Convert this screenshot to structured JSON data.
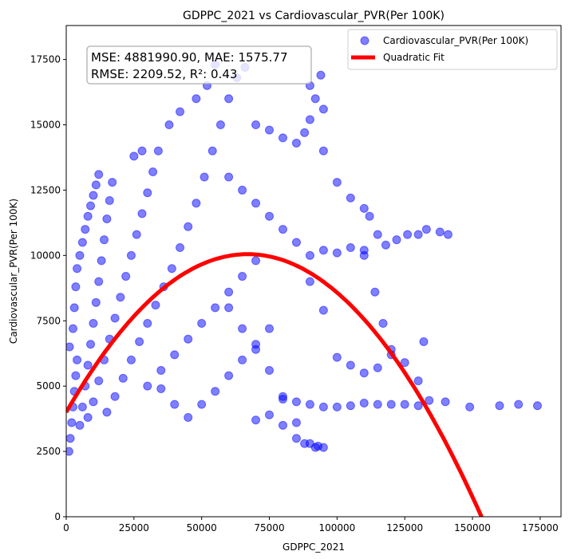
{
  "chart_data": {
    "type": "scatter",
    "title": "GDPPC_2021 vs Cardiovascular_PVR(Per 100K)",
    "xlabel": "GDPPC_2021",
    "ylabel": "Cardiovascular_PVR(Per 100K)",
    "xlim": [
      0,
      182700
    ],
    "ylim": [
      0,
      18800
    ],
    "xticks": [
      0,
      25000,
      50000,
      75000,
      100000,
      125000,
      150000,
      175000
    ],
    "yticks": [
      0,
      2500,
      5000,
      7500,
      10000,
      12500,
      15000,
      17500
    ],
    "xtick_labels": [
      "0",
      "25000",
      "50000",
      "75000",
      "100000",
      "125000",
      "150000",
      "175000"
    ],
    "ytick_labels": [
      "0",
      "2500",
      "5000",
      "7500",
      "10000",
      "12500",
      "15000",
      "17500"
    ],
    "legend": {
      "placement": "top-right",
      "entries": [
        "Cardiovascular_PVR(Per 100K)",
        "Quadratic Fit"
      ]
    },
    "stats": {
      "line1": "MSE: 4881990.90, MAE: 1575.77",
      "line2": "RMSE: 2209.52, R²: 0.43"
    },
    "colors": {
      "scatter": "#0000ff",
      "fit": "#ff0000"
    },
    "fit": {
      "name": "Quadratic Fit",
      "a": -1.348e-06,
      "b": 0.1806,
      "c": 4000,
      "x_range": [
        0,
        154000
      ]
    },
    "series": [
      {
        "name": "Cardiovascular_PVR(Per 100K)",
        "points": [
          [
            1000,
            2500
          ],
          [
            1500,
            3000
          ],
          [
            2000,
            3600
          ],
          [
            2500,
            4200
          ],
          [
            3000,
            4800
          ],
          [
            3500,
            5400
          ],
          [
            4000,
            6000
          ],
          [
            1200,
            6500
          ],
          [
            2500,
            7200
          ],
          [
            3000,
            8000
          ],
          [
            3500,
            8800
          ],
          [
            4000,
            9500
          ],
          [
            5000,
            10000
          ],
          [
            6000,
            10500
          ],
          [
            7000,
            11000
          ],
          [
            8000,
            11500
          ],
          [
            9000,
            11900
          ],
          [
            10000,
            12300
          ],
          [
            11000,
            12700
          ],
          [
            12000,
            13100
          ],
          [
            5000,
            3500
          ],
          [
            6000,
            4200
          ],
          [
            7000,
            5000
          ],
          [
            8000,
            5800
          ],
          [
            9000,
            6600
          ],
          [
            10000,
            7400
          ],
          [
            11000,
            8200
          ],
          [
            12000,
            9000
          ],
          [
            13000,
            9800
          ],
          [
            14000,
            10600
          ],
          [
            15000,
            11400
          ],
          [
            16000,
            12100
          ],
          [
            17000,
            12800
          ],
          [
            8000,
            3800
          ],
          [
            10000,
            4400
          ],
          [
            12000,
            5200
          ],
          [
            14000,
            6000
          ],
          [
            16000,
            6800
          ],
          [
            18000,
            7600
          ],
          [
            20000,
            8400
          ],
          [
            22000,
            9200
          ],
          [
            24000,
            10000
          ],
          [
            26000,
            10800
          ],
          [
            28000,
            11600
          ],
          [
            30000,
            12400
          ],
          [
            32000,
            13200
          ],
          [
            34000,
            14000
          ],
          [
            15000,
            4000
          ],
          [
            18000,
            4600
          ],
          [
            21000,
            5300
          ],
          [
            24000,
            6000
          ],
          [
            27000,
            6700
          ],
          [
            30000,
            7400
          ],
          [
            33000,
            8100
          ],
          [
            36000,
            8800
          ],
          [
            39000,
            9500
          ],
          [
            42000,
            10300
          ],
          [
            45000,
            11100
          ],
          [
            48000,
            12000
          ],
          [
            51000,
            13000
          ],
          [
            54000,
            14000
          ],
          [
            57000,
            15000
          ],
          [
            60000,
            16000
          ],
          [
            63000,
            16800
          ],
          [
            66000,
            17200
          ],
          [
            25000,
            13800
          ],
          [
            28000,
            14000
          ],
          [
            38000,
            15000
          ],
          [
            42000,
            15500
          ],
          [
            48000,
            16000
          ],
          [
            52000,
            16500
          ],
          [
            55000,
            17300
          ],
          [
            30000,
            5000
          ],
          [
            35000,
            5600
          ],
          [
            40000,
            6200
          ],
          [
            45000,
            6800
          ],
          [
            50000,
            7400
          ],
          [
            55000,
            8000
          ],
          [
            60000,
            8600
          ],
          [
            65000,
            9200
          ],
          [
            70000,
            9800
          ],
          [
            35000,
            4900
          ],
          [
            40000,
            4300
          ],
          [
            45000,
            3800
          ],
          [
            50000,
            4300
          ],
          [
            55000,
            4800
          ],
          [
            60000,
            5400
          ],
          [
            65000,
            6000
          ],
          [
            70000,
            6600
          ],
          [
            75000,
            7200
          ],
          [
            60000,
            13000
          ],
          [
            65000,
            12500
          ],
          [
            70000,
            12000
          ],
          [
            75000,
            11500
          ],
          [
            80000,
            11000
          ],
          [
            85000,
            10500
          ],
          [
            90000,
            10000
          ],
          [
            95000,
            10200
          ],
          [
            60000,
            8000
          ],
          [
            65000,
            7200
          ],
          [
            70000,
            6400
          ],
          [
            75000,
            5600
          ],
          [
            80000,
            4600
          ],
          [
            85000,
            3600
          ],
          [
            90000,
            2800
          ],
          [
            93000,
            2700
          ],
          [
            70000,
            15000
          ],
          [
            75000,
            14800
          ],
          [
            80000,
            14500
          ],
          [
            85000,
            14300
          ],
          [
            88000,
            14700
          ],
          [
            90000,
            15200
          ],
          [
            92000,
            16000
          ],
          [
            94000,
            16900
          ],
          [
            90000,
            16500
          ],
          [
            95000,
            15600
          ],
          [
            95000,
            14000
          ],
          [
            100000,
            12800
          ],
          [
            105000,
            12200
          ],
          [
            110000,
            11800
          ],
          [
            112000,
            11500
          ],
          [
            115000,
            10800
          ],
          [
            110000,
            10000
          ],
          [
            114000,
            8600
          ],
          [
            117000,
            7400
          ],
          [
            120000,
            6400
          ],
          [
            100000,
            10100
          ],
          [
            105000,
            10300
          ],
          [
            110000,
            10200
          ],
          [
            118000,
            10400
          ],
          [
            122000,
            10600
          ],
          [
            126000,
            10800
          ],
          [
            130000,
            10800
          ],
          [
            133000,
            11000
          ],
          [
            138000,
            10900
          ],
          [
            141000,
            10800
          ],
          [
            90000,
            9000
          ],
          [
            95000,
            7900
          ],
          [
            100000,
            6100
          ],
          [
            105000,
            5800
          ],
          [
            110000,
            5500
          ],
          [
            115000,
            5700
          ],
          [
            120000,
            6200
          ],
          [
            125000,
            5900
          ],
          [
            130000,
            5200
          ],
          [
            132000,
            6700
          ],
          [
            80000,
            4500
          ],
          [
            85000,
            4400
          ],
          [
            90000,
            4300
          ],
          [
            95000,
            4200
          ],
          [
            100000,
            4200
          ],
          [
            105000,
            4250
          ],
          [
            110000,
            4350
          ],
          [
            115000,
            4300
          ],
          [
            120000,
            4300
          ],
          [
            125000,
            4300
          ],
          [
            130000,
            4250
          ],
          [
            134000,
            4450
          ],
          [
            140000,
            4400
          ],
          [
            149000,
            4200
          ],
          [
            160000,
            4250
          ],
          [
            167000,
            4300
          ],
          [
            174000,
            4250
          ],
          [
            80000,
            3500
          ],
          [
            85000,
            3000
          ],
          [
            88000,
            2800
          ],
          [
            92000,
            2650
          ],
          [
            95000,
            2650
          ],
          [
            75000,
            3900
          ],
          [
            70000,
            3700
          ]
        ]
      }
    ]
  }
}
